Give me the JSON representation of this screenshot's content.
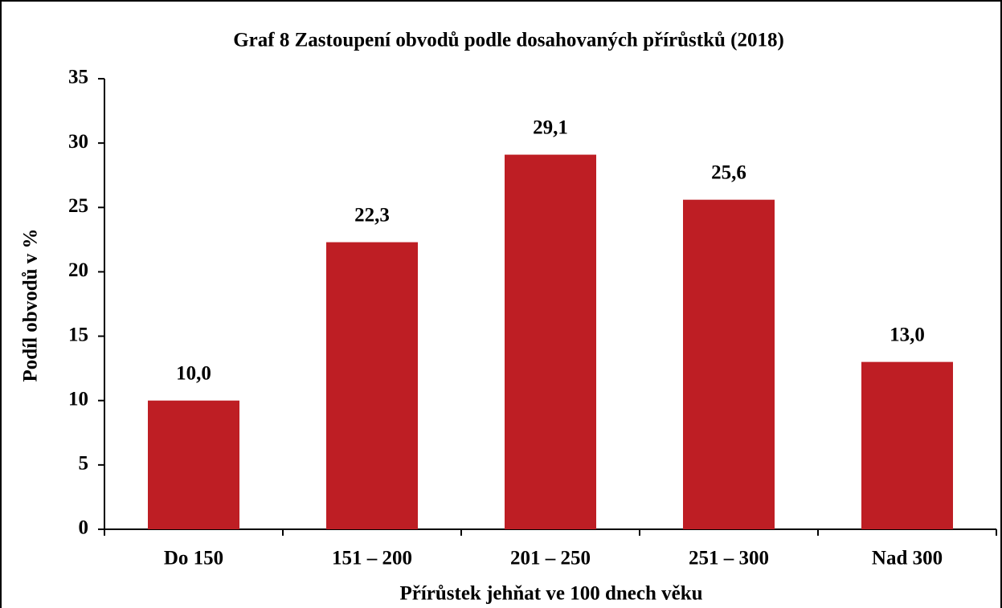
{
  "chart_data": {
    "type": "bar",
    "title": "Graf 8 Zastoupení obvodů podle dosahovaných přírůstků (2018)",
    "x_label": "Přírůstek jehňat ve 100 dnech věku",
    "y_label": "Podíl obvodů v %",
    "categories": [
      "Do 150",
      "151 – 200",
      "201 – 250",
      "251 – 300",
      "Nad 300"
    ],
    "values": [
      10.0,
      22.3,
      29.1,
      25.6,
      13.0
    ],
    "value_labels": [
      "10,0",
      "22,3",
      "29,1",
      "25,6",
      "13,0"
    ],
    "color": "#be1e24",
    "ylim": [
      0,
      35
    ],
    "yticks": [
      0,
      5,
      10,
      15,
      20,
      25,
      30,
      35
    ],
    "grid": false
  }
}
